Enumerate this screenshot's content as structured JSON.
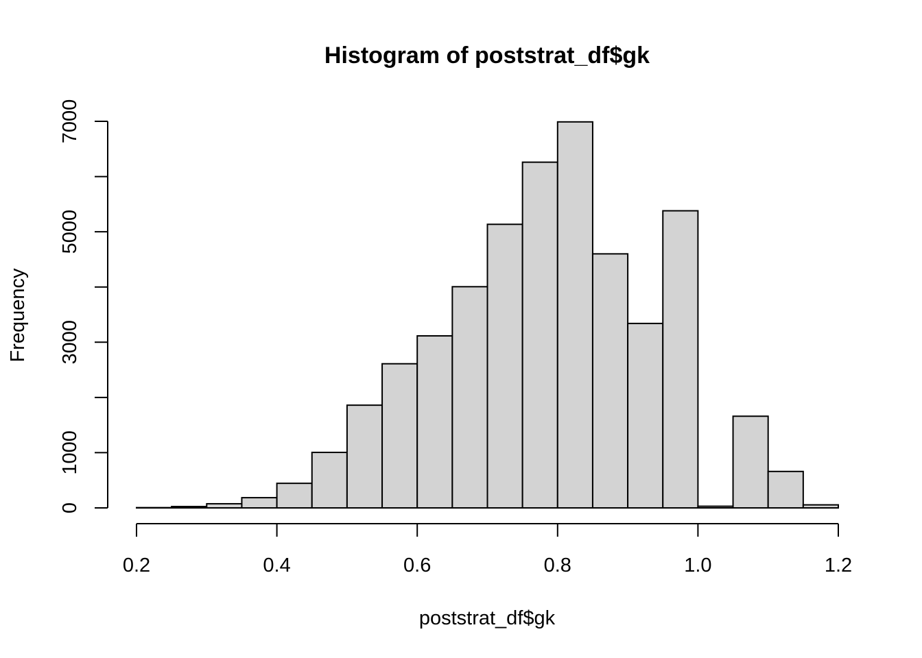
{
  "chart_data": {
    "type": "bar",
    "title": "Histogram of poststrat_df$gk",
    "xlabel": "poststrat_df$gk",
    "ylabel": "Frequency",
    "bin_edges": [
      0.2,
      0.25,
      0.3,
      0.35,
      0.4,
      0.45,
      0.5,
      0.55,
      0.6,
      0.65,
      0.7,
      0.75,
      0.8,
      0.85,
      0.9,
      0.95,
      1.0,
      1.05,
      1.1,
      1.15,
      1.2
    ],
    "values": [
      5,
      25,
      75,
      185,
      445,
      1005,
      1860,
      2610,
      3115,
      4005,
      5135,
      6260,
      6990,
      4600,
      3340,
      5380,
      30,
      1660,
      660,
      55
    ],
    "x_ticks": [
      "0.2",
      "0.4",
      "0.6",
      "0.8",
      "1.0",
      "1.2"
    ],
    "x_tick_values": [
      0.2,
      0.4,
      0.6,
      0.8,
      1.0,
      1.2
    ],
    "y_ticks": [
      "0",
      "1000",
      "3000",
      "5000",
      "7000"
    ],
    "y_tick_values": [
      0,
      1000,
      3000,
      5000,
      7000
    ],
    "y_minor_ticks": [
      2000,
      4000,
      6000
    ],
    "xlim": [
      0.2,
      1.2
    ],
    "ylim": [
      0,
      7000
    ],
    "bar_fill": "#d3d3d3",
    "bar_stroke": "#000000",
    "grid": false,
    "legend": "none"
  }
}
